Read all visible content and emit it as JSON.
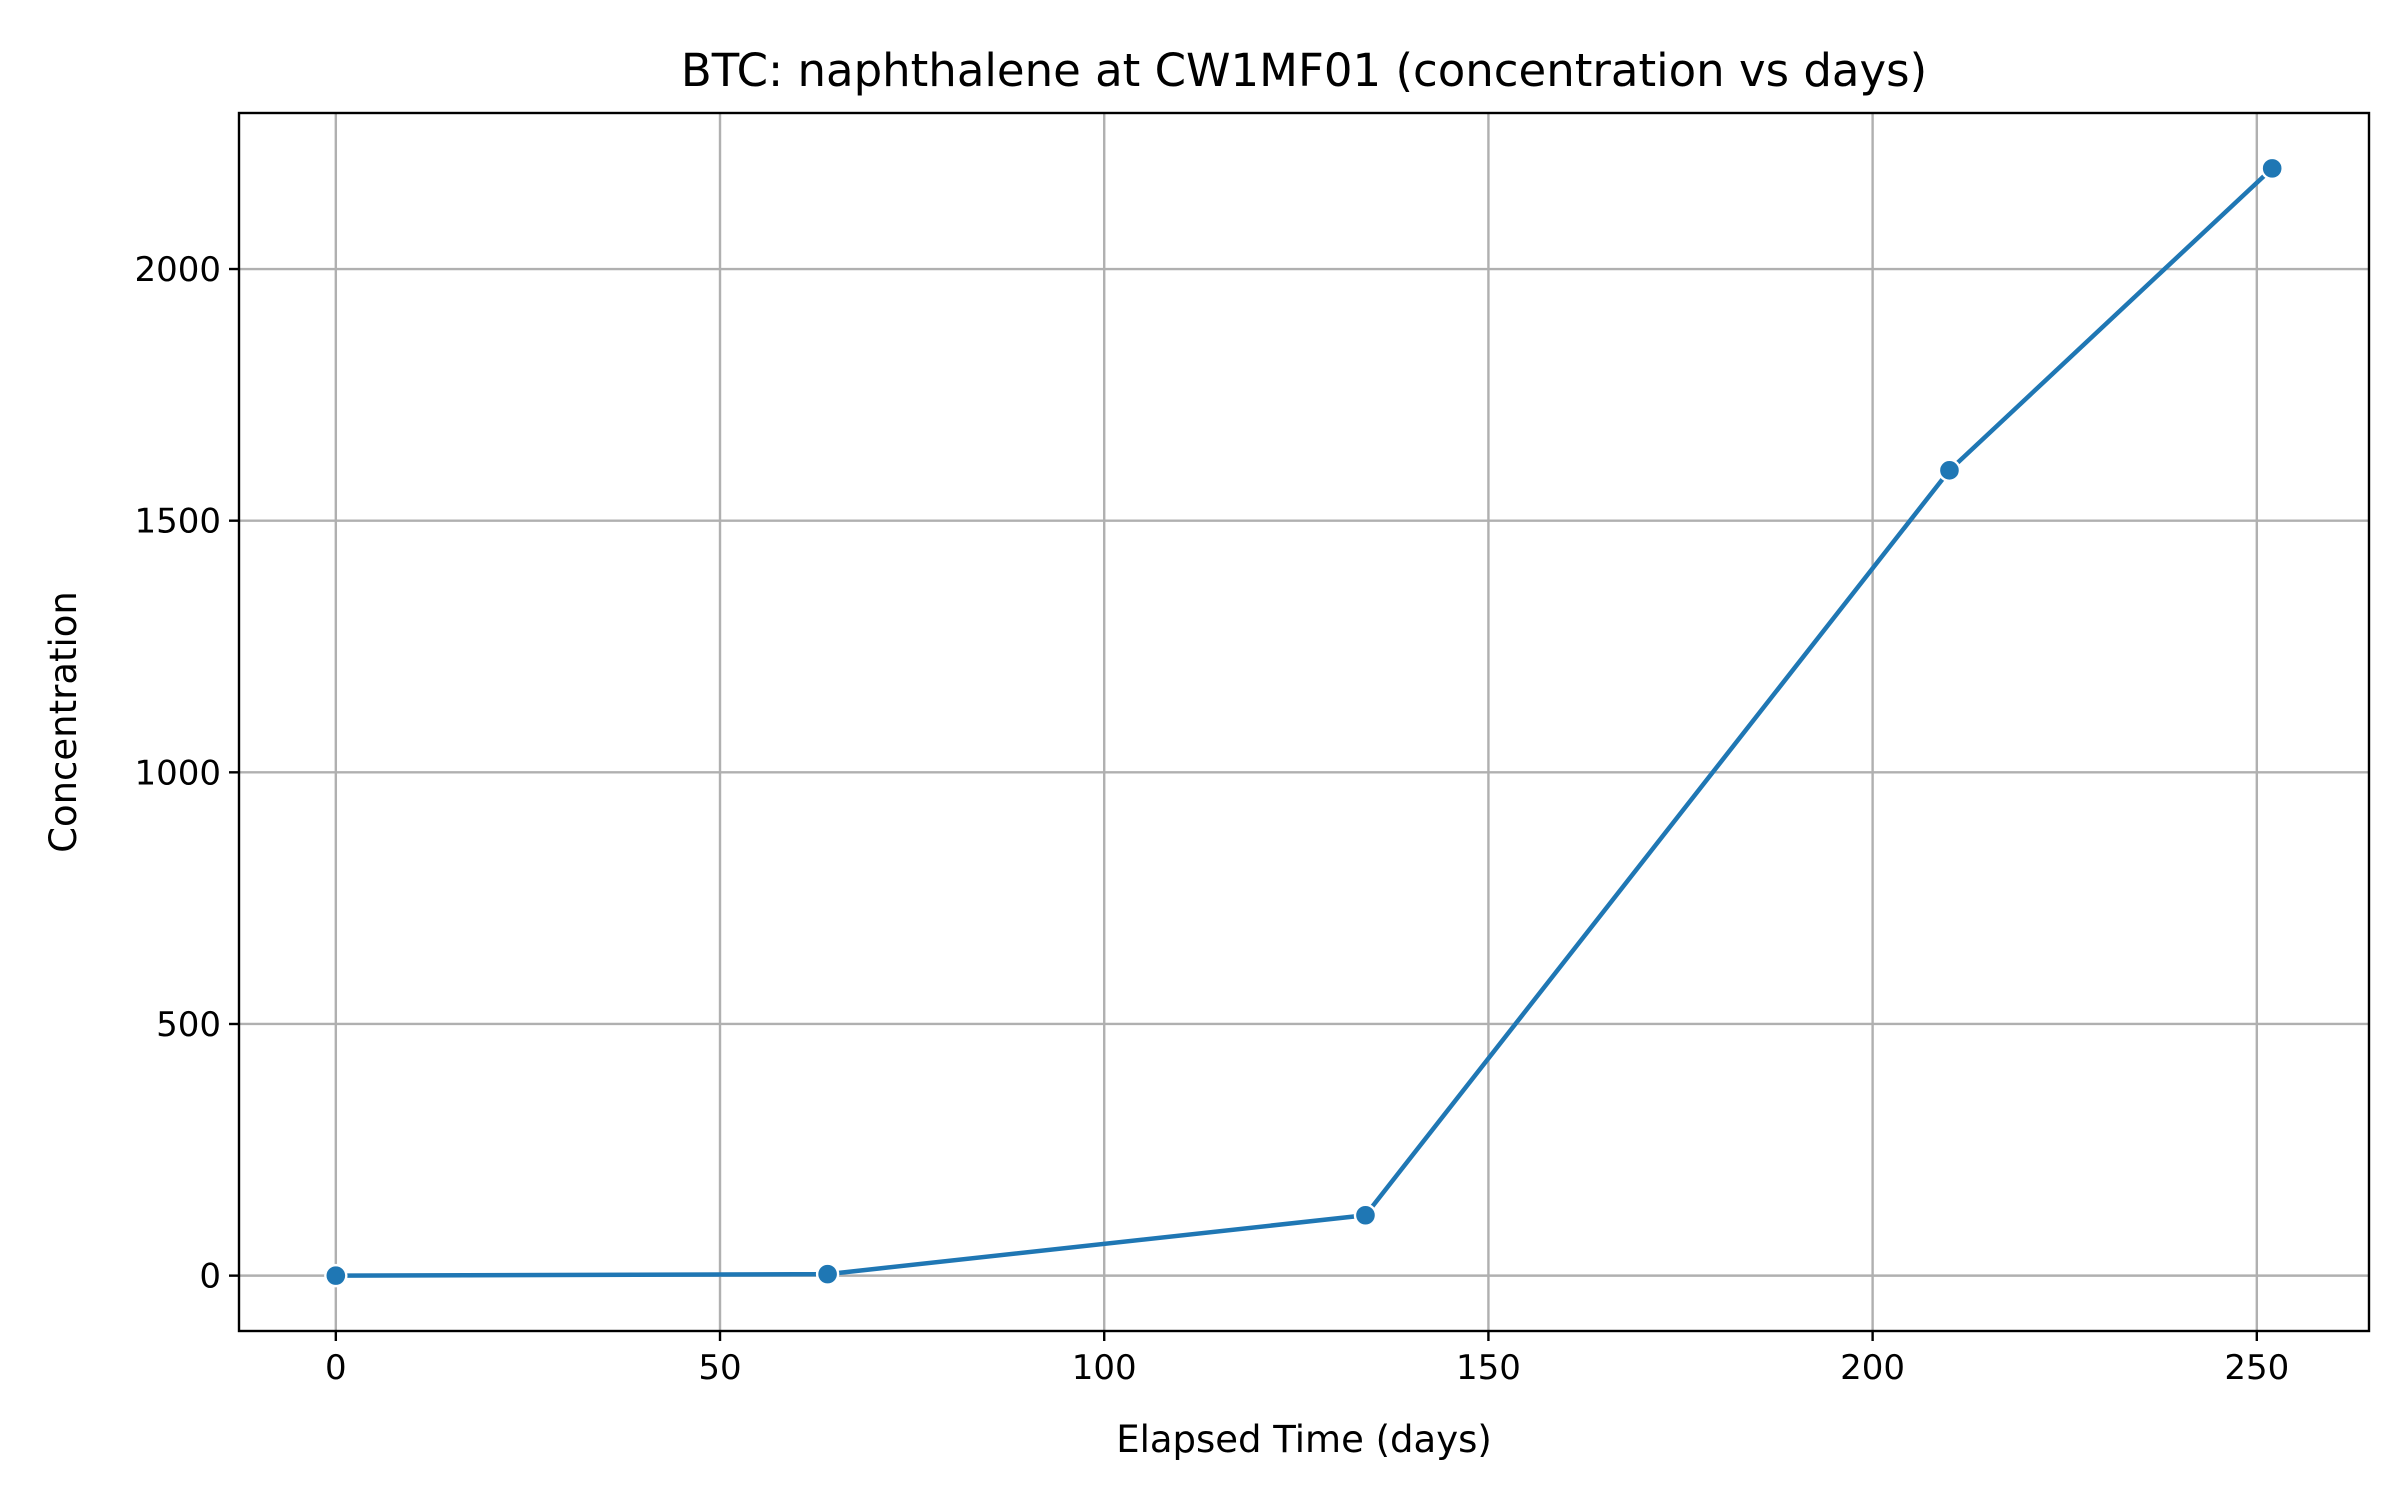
{
  "chart_data": {
    "type": "line",
    "title": "BTC: naphthalene at CW1MF01 (concentration vs days)",
    "xlabel": "Elapsed Time (days)",
    "ylabel": "Concentration",
    "xlim": [
      -12.6,
      264.6
    ],
    "ylim": [
      -110,
      2310
    ],
    "xticks": [
      0,
      50,
      100,
      150,
      200,
      250
    ],
    "yticks": [
      0,
      500,
      1000,
      1500,
      2000
    ],
    "grid": true,
    "series": [
      {
        "color": "#1f77b4",
        "marker": "circle",
        "points": [
          {
            "x": 0,
            "y": 0
          },
          {
            "x": 64,
            "y": 3
          },
          {
            "x": 134,
            "y": 120
          },
          {
            "x": 210,
            "y": 1600
          },
          {
            "x": 252,
            "y": 2200
          }
        ]
      }
    ]
  }
}
